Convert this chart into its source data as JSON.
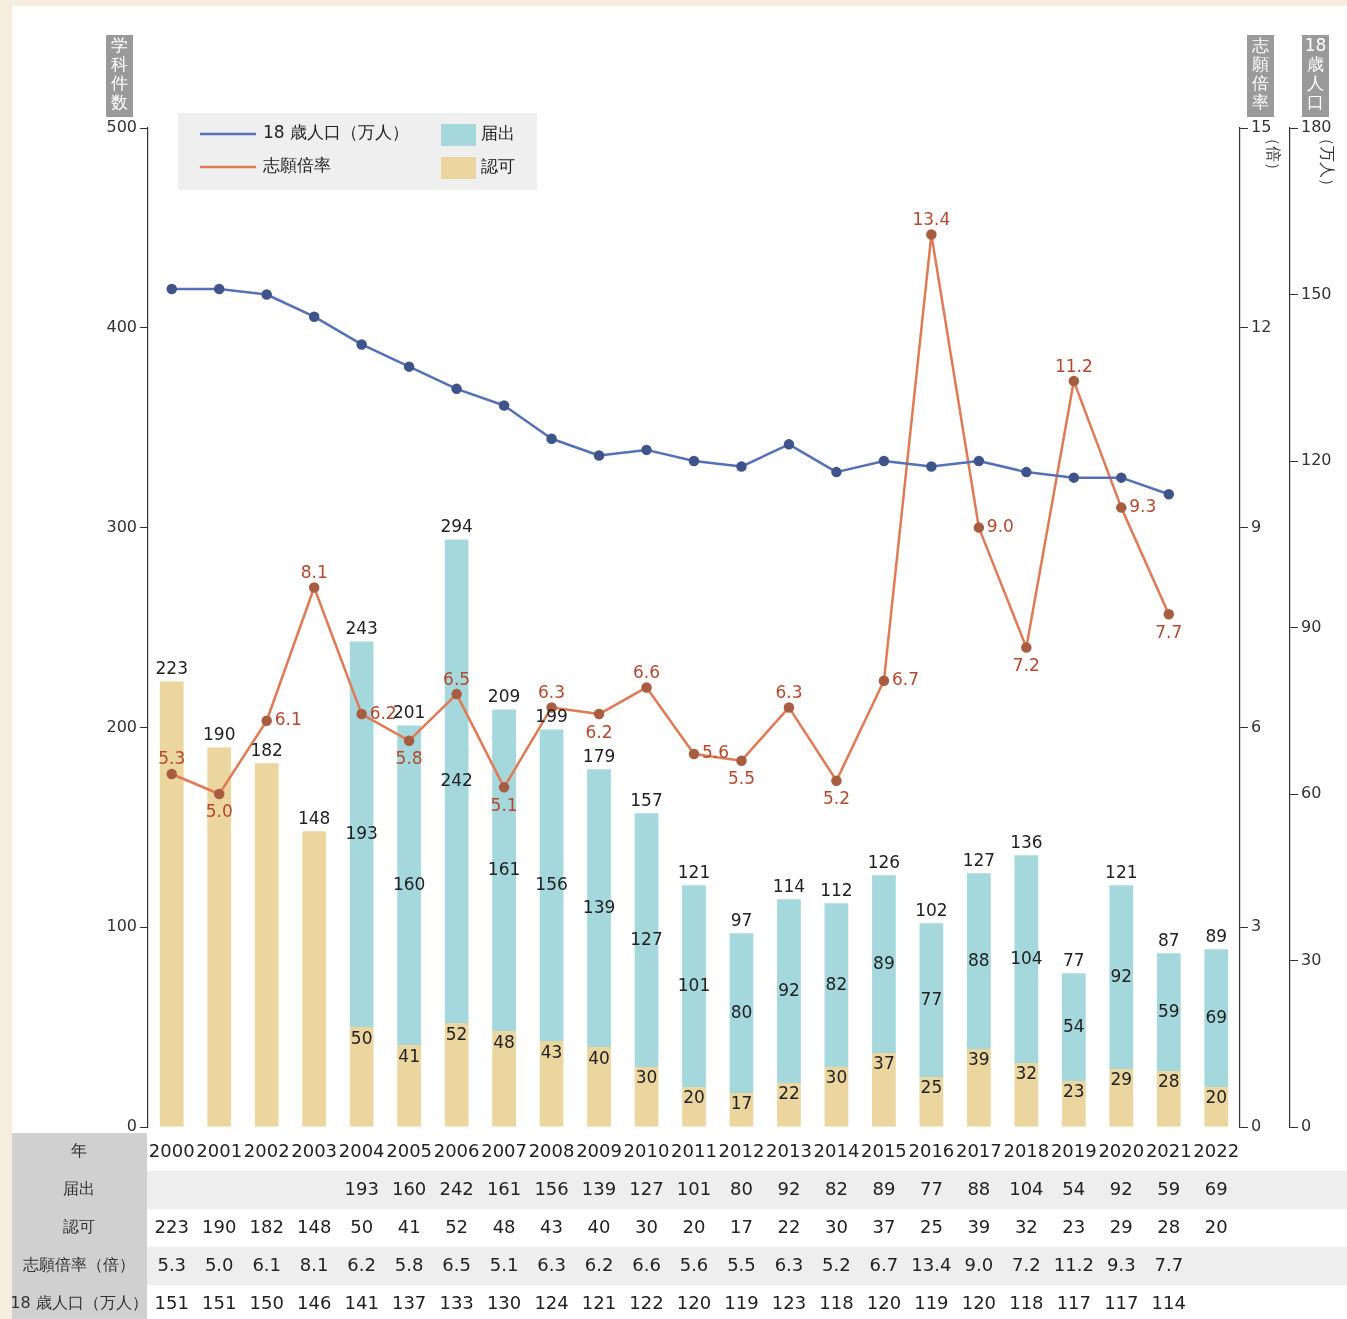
{
  "chart_data": {
    "type": "bar",
    "stacked": true,
    "xlabel": "年",
    "ylabel": "学科件数",
    "y2label": "志願倍率",
    "y3label": "18歳人口",
    "categories": [
      "2000",
      "2001",
      "2002",
      "2003",
      "2004",
      "2005",
      "2006",
      "2007",
      "2008",
      "2009",
      "2010",
      "2011",
      "2012",
      "2013",
      "2014",
      "2015",
      "2016",
      "2017",
      "2018",
      "2019",
      "2020",
      "2021",
      "2022"
    ],
    "series": [
      {
        "name": "認可",
        "color": "#ebd6a0",
        "values": [
          223,
          190,
          182,
          148,
          50,
          41,
          52,
          48,
          43,
          40,
          30,
          20,
          17,
          22,
          30,
          37,
          25,
          39,
          32,
          23,
          29,
          28,
          20
        ],
        "value_labels": [
          null,
          null,
          null,
          null,
          "50",
          "41",
          "52",
          "48",
          "43",
          "40",
          "30",
          "20",
          "17",
          "22",
          "30",
          "37",
          "25",
          "39",
          "32",
          "23",
          "29",
          "28",
          "20"
        ]
      },
      {
        "name": "届出",
        "color": "#a5d8dc",
        "values": [
          null,
          null,
          null,
          null,
          193,
          160,
          242,
          161,
          156,
          139,
          127,
          101,
          80,
          92,
          82,
          89,
          77,
          88,
          104,
          54,
          92,
          59,
          69
        ],
        "value_labels": [
          null,
          null,
          null,
          null,
          "193",
          "160",
          "242",
          "161",
          "156",
          "139",
          "127",
          "101",
          "80",
          "92",
          "82",
          "89",
          "77",
          "88",
          "104",
          "54",
          "92",
          "59",
          "69"
        ]
      },
      {
        "name": "18 歳人口（万人）",
        "type": "line",
        "axis": "y3",
        "color": "#5470b8",
        "values": [
          151,
          151,
          150,
          146,
          141,
          137,
          133,
          130,
          124,
          121,
          122,
          120,
          119,
          123,
          118,
          120,
          119,
          120,
          118,
          117,
          117,
          114,
          null
        ]
      },
      {
        "name": "志願倍率",
        "type": "line",
        "axis": "y2",
        "color": "#e07a55",
        "values": [
          5.3,
          5.0,
          6.1,
          8.1,
          6.2,
          5.8,
          6.5,
          5.1,
          6.3,
          6.2,
          6.6,
          5.6,
          5.5,
          6.3,
          5.2,
          6.7,
          13.4,
          9.0,
          7.2,
          11.2,
          9.3,
          7.7,
          null
        ],
        "value_labels": [
          "5.3",
          "5.0",
          "6.1",
          "8.1",
          "6.2",
          "5.8",
          "6.5",
          "5.1",
          "6.3",
          "6.2",
          "6.6",
          "5.6",
          "5.5",
          "6.3",
          "5.2",
          "6.7",
          "13.4",
          "9.0",
          "7.2",
          "11.2",
          "9.3",
          "7.7",
          null
        ]
      }
    ],
    "totals": [
      "223",
      "190",
      "182",
      "148",
      "243",
      "201",
      "294",
      "209",
      "199",
      "179",
      "157",
      "121",
      "97",
      "114",
      "112",
      "126",
      "102",
      "127",
      "136",
      "77",
      "121",
      "87",
      "89"
    ],
    "ylim": [
      0,
      500
    ],
    "yticks": [
      0,
      100,
      200,
      300,
      400,
      500
    ],
    "y2lim": [
      0,
      15
    ],
    "y2ticks": [
      0,
      3,
      6,
      9,
      12,
      15
    ],
    "y3lim": [
      0,
      180
    ],
    "y3ticks": [
      0,
      30,
      60,
      90,
      120,
      150,
      180
    ],
    "annotations": [
      "（倍）",
      "（万人）",
      "志願倍率（倍）"
    ],
    "data_labels": true,
    "grid": false,
    "legend": "top left",
    "marker": "circle",
    "line_style": "solid"
  }
}
